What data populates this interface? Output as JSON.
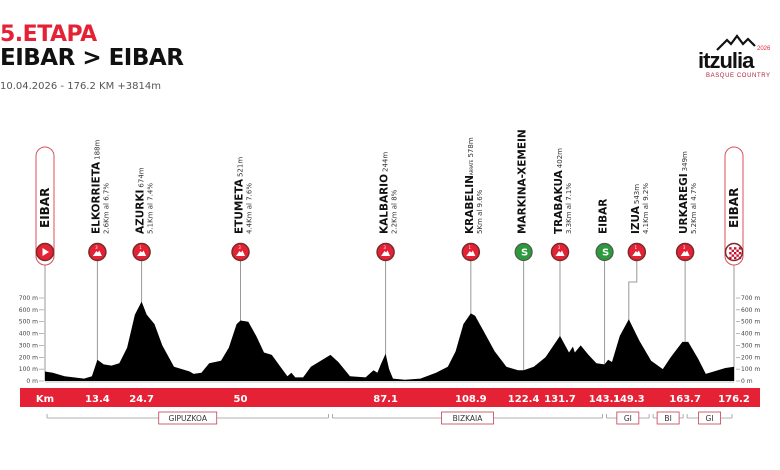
{
  "header": {
    "stage": "5.ETAPA",
    "route": "EIBAR > EIBAR",
    "meta": "10.04.2026 - 176.2 KM +3814m"
  },
  "logo": {
    "text": "itzulia",
    "year": "2026",
    "sub": "BASQUE COUNTRY"
  },
  "colors": {
    "accent": "#e52235",
    "sprint": "#2a9a3a",
    "profile": "#000000",
    "marker_ring": "#7a2a2a"
  },
  "chart_data": {
    "type": "area",
    "xlabel": "Km",
    "ylim": [
      0,
      700
    ],
    "xlim": [
      0,
      176.2
    ],
    "y_ticks": [
      "0 m",
      "100 m",
      "200 m",
      "300 m",
      "400 m",
      "500 m",
      "600 m",
      "700 m"
    ],
    "y_tick_values": [
      0,
      100,
      200,
      300,
      400,
      500,
      600,
      700
    ],
    "km_labels": [
      "13.4",
      "24.7",
      "50",
      "87.1",
      "108.9",
      "122.4",
      "131.7",
      "143.1",
      "149.3",
      "163.7",
      "176.2"
    ],
    "profile": [
      [
        0,
        80
      ],
      [
        2,
        70
      ],
      [
        5,
        40
      ],
      [
        10,
        20
      ],
      [
        12,
        40
      ],
      [
        13.4,
        180
      ],
      [
        15,
        140
      ],
      [
        17,
        130
      ],
      [
        19,
        150
      ],
      [
        21,
        280
      ],
      [
        23,
        560
      ],
      [
        24.7,
        670
      ],
      [
        26,
        560
      ],
      [
        28,
        480
      ],
      [
        30,
        300
      ],
      [
        33,
        120
      ],
      [
        35,
        100
      ],
      [
        37,
        80
      ],
      [
        38,
        60
      ],
      [
        40,
        70
      ],
      [
        42,
        150
      ],
      [
        45,
        170
      ],
      [
        47,
        280
      ],
      [
        49,
        480
      ],
      [
        50,
        510
      ],
      [
        52,
        500
      ],
      [
        54,
        380
      ],
      [
        56,
        240
      ],
      [
        58,
        220
      ],
      [
        60,
        130
      ],
      [
        62,
        40
      ],
      [
        63,
        70
      ],
      [
        64,
        30
      ],
      [
        66,
        30
      ],
      [
        68,
        120
      ],
      [
        70,
        160
      ],
      [
        72,
        200
      ],
      [
        73,
        220
      ],
      [
        75,
        160
      ],
      [
        78,
        40
      ],
      [
        82,
        30
      ],
      [
        84,
        90
      ],
      [
        85,
        70
      ],
      [
        86,
        150
      ],
      [
        87.1,
        230
      ],
      [
        88,
        100
      ],
      [
        89,
        20
      ],
      [
        92,
        10
      ],
      [
        96,
        20
      ],
      [
        100,
        70
      ],
      [
        103,
        120
      ],
      [
        105,
        250
      ],
      [
        107,
        480
      ],
      [
        108.9,
        570
      ],
      [
        110,
        550
      ],
      [
        112,
        430
      ],
      [
        115,
        250
      ],
      [
        118,
        120
      ],
      [
        121,
        90
      ],
      [
        122.4,
        90
      ],
      [
        125,
        120
      ],
      [
        128,
        200
      ],
      [
        131.7,
        380
      ],
      [
        134,
        240
      ],
      [
        135,
        290
      ],
      [
        135.5,
        240
      ],
      [
        137,
        300
      ],
      [
        139,
        220
      ],
      [
        141,
        150
      ],
      [
        143.1,
        140
      ],
      [
        144,
        180
      ],
      [
        145,
        160
      ],
      [
        147,
        380
      ],
      [
        149.3,
        520
      ],
      [
        152,
        340
      ],
      [
        155,
        170
      ],
      [
        158,
        100
      ],
      [
        160,
        200
      ],
      [
        163,
        330
      ],
      [
        164.5,
        330
      ],
      [
        167,
        190
      ],
      [
        169,
        60
      ],
      [
        171,
        80
      ],
      [
        174,
        110
      ],
      [
        176.2,
        120
      ]
    ],
    "markers": [
      {
        "km": 0,
        "type": "start",
        "name": "EIBAR"
      },
      {
        "km": 13.4,
        "type": "climb",
        "cat": "3",
        "name": "ELKORRIETA",
        "alt": "188m",
        "detail": "2.6Km al 6.7%"
      },
      {
        "km": 24.7,
        "type": "climb",
        "cat": "1",
        "name": "AZURKI",
        "alt": "674m",
        "detail": "5.1Km al 7.4%"
      },
      {
        "km": 50,
        "type": "climb",
        "cat": "3",
        "name": "ETUMETA",
        "alt": "521m",
        "detail": "4.4Km al 7.6%"
      },
      {
        "km": 87.1,
        "type": "climb",
        "cat": "3",
        "name": "KALBARIO",
        "alt": "244m",
        "detail": "2.2Km al 8%"
      },
      {
        "km": 108.9,
        "type": "climb",
        "cat": "1",
        "name": "KRABELIN",
        "sub": "ARRATE",
        "alt": "578m",
        "detail": "5Km al 9.6%"
      },
      {
        "km": 122.4,
        "type": "sprint",
        "name": "MARKINA-XEMEIN"
      },
      {
        "km": 131.7,
        "type": "climb",
        "cat": "3",
        "name": "TRABAKUA",
        "alt": "402m",
        "detail": "3.3Km al 7.1%"
      },
      {
        "km": 143.1,
        "type": "sprint",
        "name": "EIBAR"
      },
      {
        "km": 149.3,
        "type": "climb",
        "cat": "1",
        "name": "IZUA",
        "alt": "543m",
        "detail": "4.1Km al 9.2%",
        "offset": true
      },
      {
        "km": 163.7,
        "type": "climb",
        "cat": "3",
        "name": "URKAREGI",
        "alt": "349m",
        "detail": "5.2Km al 4.7%"
      },
      {
        "km": 176.2,
        "type": "finish",
        "name": "EIBAR"
      }
    ],
    "regions": [
      {
        "label": "GIPUZKOA",
        "from": 0,
        "to": 73
      },
      {
        "label": "BIZKAIA",
        "from": 73,
        "to": 143.1
      },
      {
        "label": "GI",
        "from": 143.1,
        "to": 155
      },
      {
        "label": "BI",
        "from": 155,
        "to": 163.7
      },
      {
        "label": "GI",
        "from": 163.7,
        "to": 176.2
      }
    ]
  }
}
